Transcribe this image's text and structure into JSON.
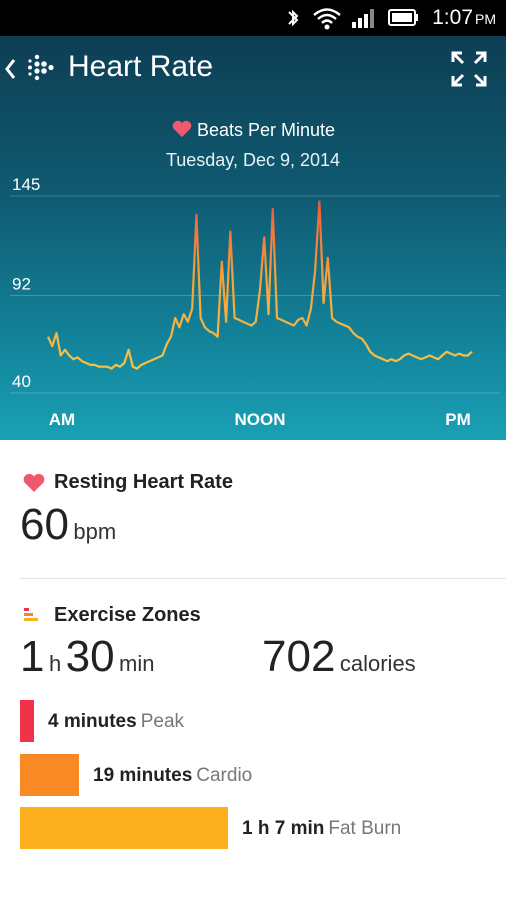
{
  "status_bar": {
    "time": "1:07",
    "ampm": "PM"
  },
  "header": {
    "title": "Heart Rate"
  },
  "chart": {
    "legend_label": "Beats Per Minute",
    "date": "Tuesday, Dec 9, 2014"
  },
  "chart_data": {
    "type": "line",
    "title": "Beats Per Minute",
    "subtitle": "Tuesday, Dec 9, 2014",
    "y_ticks": [
      "145",
      "92",
      "40"
    ],
    "x_ticks": [
      "AM",
      "NOON",
      "PM"
    ],
    "ylim": [
      40,
      145
    ],
    "series": [
      {
        "name": "Beats Per Minute",
        "x": [
          0,
          1,
          2,
          3,
          4,
          5,
          6,
          7,
          8,
          9,
          10,
          11,
          12,
          13,
          14,
          15,
          16,
          17,
          18,
          19,
          20,
          21,
          22,
          23,
          24,
          25,
          26,
          27,
          28,
          29,
          30,
          31,
          32,
          33,
          34,
          35,
          36,
          37,
          38,
          39,
          40,
          41,
          42,
          43,
          44,
          45,
          46,
          47,
          48,
          49,
          50,
          51,
          52,
          53,
          54,
          55,
          56,
          57,
          58,
          59,
          60,
          61,
          62,
          63,
          64,
          65,
          66,
          67,
          68,
          69,
          70,
          71,
          72,
          73,
          74,
          75,
          76,
          77,
          78,
          79,
          80,
          81,
          82,
          83,
          84,
          85,
          86,
          87,
          88,
          89,
          90,
          91,
          92,
          93,
          94,
          95,
          96,
          97,
          98,
          99,
          100
        ],
        "y": [
          70,
          65,
          72,
          60,
          63,
          60,
          58,
          59,
          57,
          56,
          55,
          55,
          54,
          54,
          54,
          53,
          55,
          54,
          56,
          63,
          54,
          53,
          55,
          56,
          57,
          58,
          59,
          60,
          66,
          70,
          80,
          75,
          82,
          78,
          85,
          135,
          80,
          75,
          73,
          72,
          70,
          110,
          78,
          126,
          80,
          79,
          78,
          77,
          76,
          78,
          95,
          123,
          82,
          138,
          80,
          79,
          78,
          77,
          76,
          79,
          80,
          76,
          85,
          105,
          142,
          88,
          112,
          80,
          78,
          77,
          76,
          75,
          72,
          70,
          69,
          66,
          62,
          60,
          59,
          58,
          57,
          58,
          57,
          58,
          60,
          61,
          60,
          59,
          58,
          59,
          60,
          59,
          58,
          60,
          62,
          61,
          60,
          61,
          60,
          60,
          62
        ]
      }
    ]
  },
  "resting": {
    "title": "Resting Heart Rate",
    "value": "60",
    "unit": "bpm"
  },
  "exercise": {
    "title": "Exercise Zones",
    "hours": "1",
    "hours_unit": "h",
    "minutes": "30",
    "minutes_unit": "min",
    "calories": "702",
    "calories_unit": "calories",
    "zones": [
      {
        "duration": "4 minutes",
        "name": "Peak",
        "minutes": 4,
        "color": "#f0324b"
      },
      {
        "duration": "19 minutes",
        "name": "Cardio",
        "minutes": 19,
        "color": "#f78a25"
      },
      {
        "duration": "1 h 7 min",
        "name": "Fat Burn",
        "minutes": 67,
        "color": "#fdb01e"
      }
    ]
  },
  "colors": {
    "line_low": "#f6b73c",
    "line_high": "#f26a3a",
    "heart": "#f0586c"
  }
}
